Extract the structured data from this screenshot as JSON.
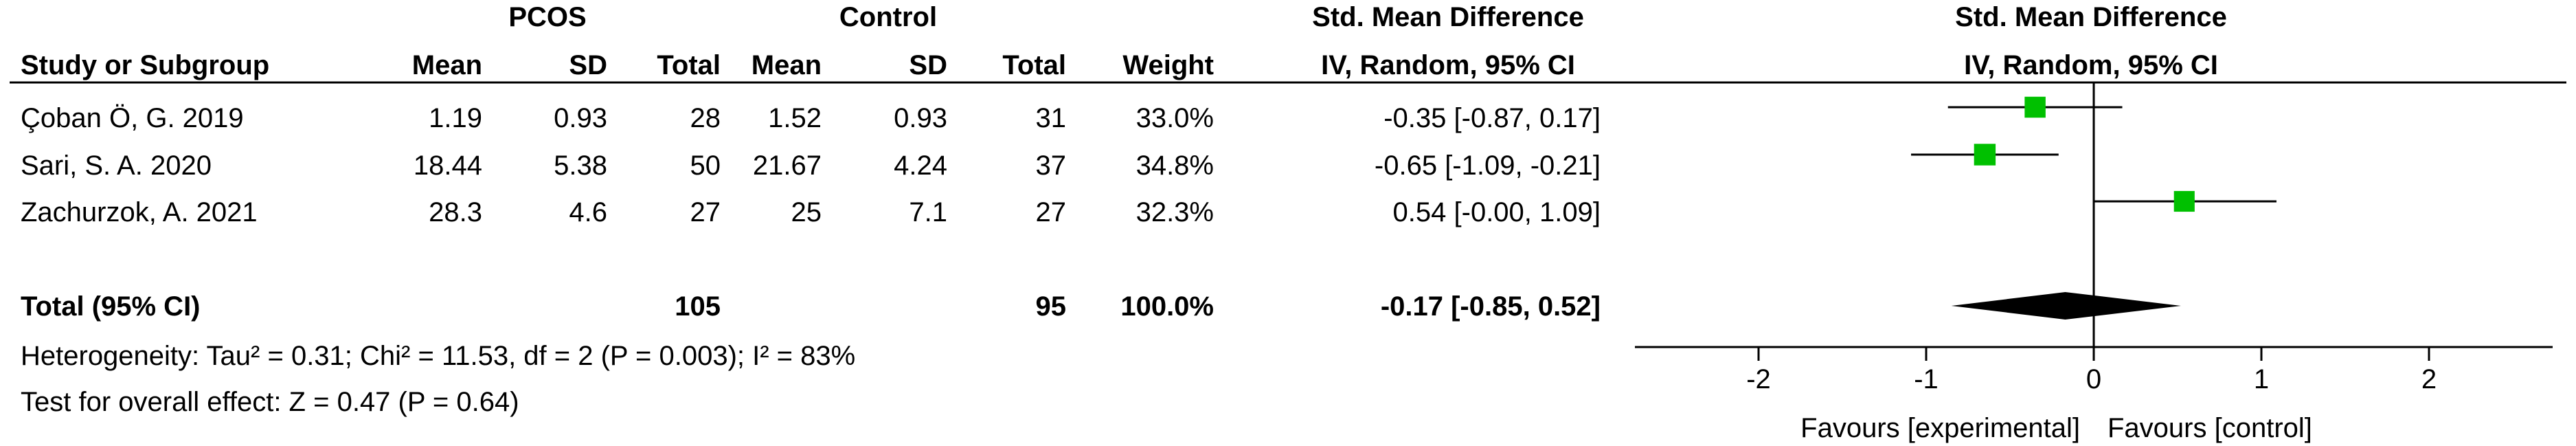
{
  "chart_data": {
    "type": "forest",
    "group_headers": {
      "experimental": "PCOS",
      "control": "Control",
      "effect_text": "Std. Mean Difference",
      "effect_plot": "Std. Mean Difference"
    },
    "columns": {
      "study": "Study or Subgroup",
      "mean_e": "Mean",
      "sd_e": "SD",
      "total_e": "Total",
      "mean_c": "Mean",
      "sd_c": "SD",
      "total_c": "Total",
      "weight": "Weight",
      "method_text": "IV, Random, 95% CI",
      "method_plot": "IV, Random, 95% CI"
    },
    "studies": [
      {
        "name": "Çoban Ö, G. 2019",
        "mean_e": "1.19",
        "sd_e": "0.93",
        "total_e": "28",
        "mean_c": "1.52",
        "sd_c": "0.93",
        "total_c": "31",
        "weight": "33.0%",
        "ci_text": "-0.35 [-0.87, 0.17]",
        "est": -0.35,
        "lo": -0.87,
        "hi": 0.17
      },
      {
        "name": "Sari, S. A. 2020",
        "mean_e": "18.44",
        "sd_e": "5.38",
        "total_e": "50",
        "mean_c": "21.67",
        "sd_c": "4.24",
        "total_c": "37",
        "weight": "34.8%",
        "ci_text": "-0.65 [-1.09, -0.21]",
        "est": -0.65,
        "lo": -1.09,
        "hi": -0.21
      },
      {
        "name": "Zachurzok, A. 2021",
        "mean_e": "28.3",
        "sd_e": "4.6",
        "total_e": "27",
        "mean_c": "25",
        "sd_c": "7.1",
        "total_c": "27",
        "weight": "32.3%",
        "ci_text": "0.54 [-0.00, 1.09]",
        "est": 0.54,
        "lo": 0.0,
        "hi": 1.09
      }
    ],
    "total": {
      "label": "Total (95% CI)",
      "total_e": "105",
      "total_c": "95",
      "weight": "100.0%",
      "ci_text": "-0.17 [-0.85, 0.52]",
      "est": -0.17,
      "lo": -0.85,
      "hi": 0.52
    },
    "heterogeneity": "Heterogeneity: Tau² = 0.31; Chi² = 11.53, df = 2 (P = 0.003); I² = 83%",
    "overall_effect": "Test for overall effect: Z = 0.47 (P = 0.64)",
    "axis": {
      "range": [
        -2,
        2
      ],
      "ticks": [
        -2,
        -1,
        0,
        1,
        2
      ],
      "tick_labels": [
        "-2",
        "-1",
        "0",
        "1",
        "2"
      ],
      "favours_left": "Favours [experimental]",
      "favours_right": "Favours [control]"
    },
    "colors": {
      "marker": "#00c000",
      "diamond": "#000000",
      "line": "#000000"
    }
  }
}
